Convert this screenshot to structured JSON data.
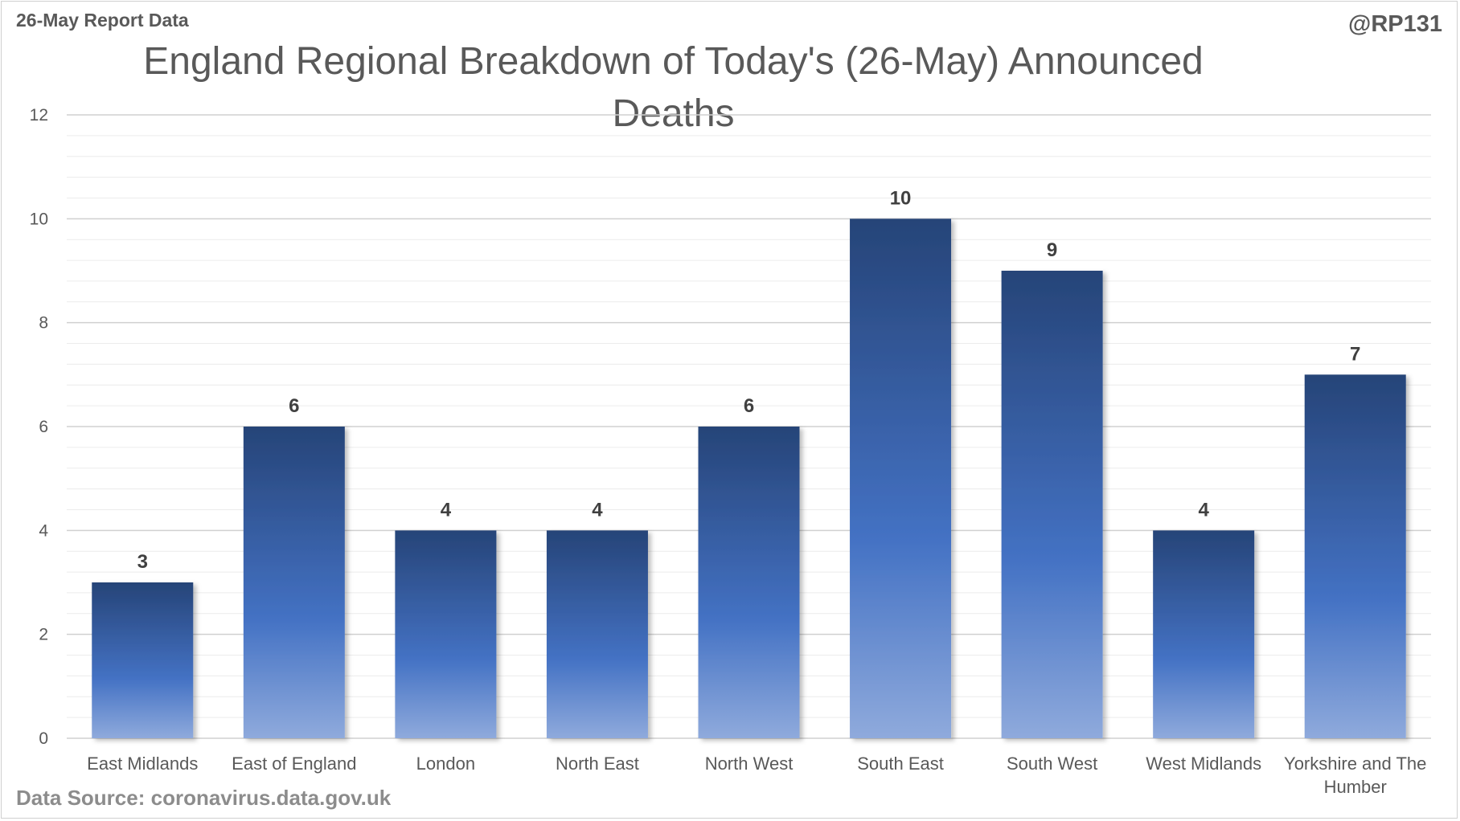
{
  "header": {
    "report_label": "26-May Report Data",
    "author_handle": "@RP131"
  },
  "footer": {
    "source": "Data Source: coronavirus.data.gov.uk"
  },
  "colors": {
    "bar_top": "#264478",
    "bar_mid": "#4472c4",
    "bar_bottom": "#8faadc",
    "gridline": "#d9d9d9",
    "text": "#595959"
  },
  "chart_data": {
    "type": "bar",
    "title": "England Regional Breakdown of Today's (26-May) Announced Deaths",
    "xlabel": "",
    "ylabel": "",
    "ylim": [
      0,
      12
    ],
    "yticks": [
      0,
      2,
      4,
      6,
      8,
      10,
      12
    ],
    "grid": true,
    "categories": [
      "East Midlands",
      "East of England",
      "London",
      "North East",
      "North West",
      "South East",
      "South West",
      "West Midlands",
      "Yorkshire and The Humber"
    ],
    "values": [
      3,
      6,
      4,
      4,
      6,
      10,
      9,
      4,
      7
    ],
    "data_labels": true
  }
}
